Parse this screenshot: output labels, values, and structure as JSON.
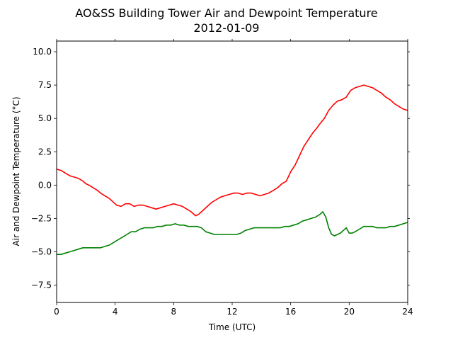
{
  "chart_data": {
    "type": "line",
    "title": "AO&SS Building Tower Air and Dewpoint Temperature",
    "subtitle": "2012-01-09",
    "xlabel": "Time (UTC)",
    "ylabel": "Air and Dewpoint Temperature (°C)",
    "xlim": [
      0,
      24
    ],
    "ylim": [
      -8.8,
      10.8
    ],
    "xticks": [
      0,
      4,
      8,
      12,
      16,
      20,
      24
    ],
    "xtick_labels": [
      "0",
      "4",
      "8",
      "12",
      "16",
      "20",
      "24"
    ],
    "yticks": [
      -7.5,
      -5.0,
      -2.5,
      0.0,
      2.5,
      5.0,
      7.5,
      10.0
    ],
    "ytick_labels": [
      "−7.5",
      "−5.0",
      "−2.5",
      "0.0",
      "2.5",
      "5.0",
      "7.5",
      "10.0"
    ],
    "grid": false,
    "series": [
      {
        "color": "#ff0000",
        "x": [
          0,
          0.3,
          0.6,
          0.9,
          1.2,
          1.5,
          1.8,
          2.0,
          2.2,
          2.5,
          2.8,
          3.0,
          3.3,
          3.6,
          3.9,
          4.1,
          4.4,
          4.7,
          5.0,
          5.3,
          5.6,
          5.9,
          6.2,
          6.5,
          6.8,
          7.1,
          7.4,
          7.7,
          8.0,
          8.3,
          8.6,
          8.9,
          9.2,
          9.5,
          9.7,
          10.0,
          10.3,
          10.6,
          10.9,
          11.2,
          11.5,
          11.8,
          12.1,
          12.4,
          12.7,
          13.0,
          13.3,
          13.6,
          13.9,
          14.2,
          14.5,
          14.8,
          15.1,
          15.4,
          15.7,
          16.0,
          16.3,
          16.6,
          16.9,
          17.2,
          17.5,
          17.8,
          18.0,
          18.3,
          18.6,
          18.9,
          19.2,
          19.5,
          19.8,
          20.1,
          20.4,
          20.7,
          21.0,
          21.3,
          21.6,
          21.9,
          22.2,
          22.5,
          22.8,
          23.1,
          23.4,
          23.7,
          24.0
        ],
        "y": [
          1.2,
          1.1,
          0.9,
          0.7,
          0.6,
          0.5,
          0.3,
          0.1,
          0.0,
          -0.2,
          -0.4,
          -0.6,
          -0.8,
          -1.0,
          -1.3,
          -1.5,
          -1.6,
          -1.4,
          -1.4,
          -1.6,
          -1.5,
          -1.5,
          -1.6,
          -1.7,
          -1.8,
          -1.7,
          -1.6,
          -1.5,
          -1.4,
          -1.5,
          -1.6,
          -1.8,
          -2.0,
          -2.3,
          -2.2,
          -1.9,
          -1.6,
          -1.3,
          -1.1,
          -0.9,
          -0.8,
          -0.7,
          -0.6,
          -0.6,
          -0.7,
          -0.6,
          -0.6,
          -0.7,
          -0.8,
          -0.7,
          -0.6,
          -0.4,
          -0.2,
          0.1,
          0.3,
          1.0,
          1.5,
          2.2,
          2.9,
          3.4,
          3.9,
          4.3,
          4.6,
          5.0,
          5.6,
          6.0,
          6.3,
          6.4,
          6.6,
          7.1,
          7.3,
          7.4,
          7.5,
          7.4,
          7.3,
          7.1,
          6.9,
          6.6,
          6.4,
          6.1,
          5.9,
          5.7,
          5.6
        ]
      },
      {
        "color": "#008000",
        "x": [
          0,
          0.3,
          0.6,
          0.9,
          1.2,
          1.5,
          1.8,
          2.1,
          2.4,
          2.7,
          3.0,
          3.3,
          3.6,
          3.9,
          4.2,
          4.5,
          4.8,
          5.1,
          5.4,
          5.7,
          6.0,
          6.3,
          6.6,
          6.9,
          7.2,
          7.5,
          7.8,
          8.1,
          8.4,
          8.7,
          9.0,
          9.3,
          9.6,
          9.9,
          10.2,
          10.5,
          10.8,
          11.1,
          11.4,
          11.7,
          12.0,
          12.3,
          12.6,
          12.9,
          13.2,
          13.5,
          13.8,
          14.1,
          14.4,
          14.7,
          15.0,
          15.3,
          15.6,
          15.9,
          16.2,
          16.5,
          16.8,
          17.1,
          17.4,
          17.7,
          18.0,
          18.2,
          18.4,
          18.6,
          18.8,
          19.0,
          19.2,
          19.4,
          19.6,
          19.8,
          20.0,
          20.2,
          20.4,
          20.7,
          21.0,
          21.3,
          21.6,
          21.9,
          22.2,
          22.5,
          22.8,
          23.1,
          23.4,
          23.7,
          24.0
        ],
        "y": [
          -5.2,
          -5.2,
          -5.1,
          -5.0,
          -4.9,
          -4.8,
          -4.7,
          -4.7,
          -4.7,
          -4.7,
          -4.7,
          -4.6,
          -4.5,
          -4.3,
          -4.1,
          -3.9,
          -3.7,
          -3.5,
          -3.5,
          -3.3,
          -3.2,
          -3.2,
          -3.2,
          -3.1,
          -3.1,
          -3.0,
          -3.0,
          -2.9,
          -3.0,
          -3.0,
          -3.1,
          -3.1,
          -3.1,
          -3.2,
          -3.5,
          -3.6,
          -3.7,
          -3.7,
          -3.7,
          -3.7,
          -3.7,
          -3.7,
          -3.6,
          -3.4,
          -3.3,
          -3.2,
          -3.2,
          -3.2,
          -3.2,
          -3.2,
          -3.2,
          -3.2,
          -3.1,
          -3.1,
          -3.0,
          -2.9,
          -2.7,
          -2.6,
          -2.5,
          -2.4,
          -2.2,
          -2.0,
          -2.4,
          -3.2,
          -3.7,
          -3.8,
          -3.7,
          -3.6,
          -3.4,
          -3.2,
          -3.6,
          -3.6,
          -3.5,
          -3.3,
          -3.1,
          -3.1,
          -3.1,
          -3.2,
          -3.2,
          -3.2,
          -3.1,
          -3.1,
          -3.0,
          -2.9,
          -2.8
        ]
      }
    ]
  }
}
